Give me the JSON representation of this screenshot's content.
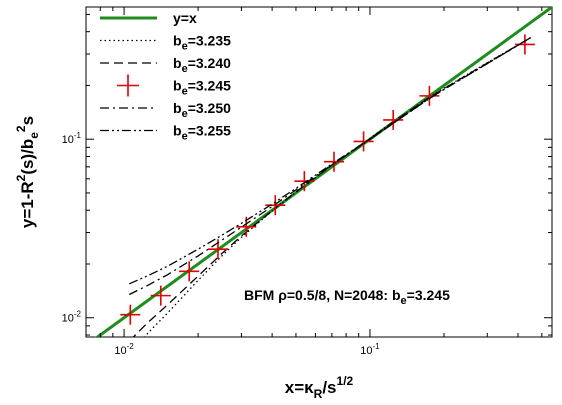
{
  "chart_data": {
    "type": "line",
    "x_scale": "log",
    "y_scale": "log",
    "xlim": [
      0.007,
      0.55
    ],
    "ylim": [
      0.0078,
      0.55
    ],
    "xlabel": {
      "base": "x=κ",
      "sub": "R",
      "mid": "/s",
      "sup": "1/2"
    },
    "ylabel": {
      "a": "y=1-R",
      "sup1": "2",
      "b": "(s)/b",
      "sub1": "e",
      "sup2": "2",
      "c": "s"
    },
    "x_ticks": [
      {
        "value": 0.01,
        "base": "10",
        "exp": "-2"
      },
      {
        "value": 0.1,
        "base": "10",
        "exp": "-1"
      }
    ],
    "y_ticks": [
      {
        "value": 0.01,
        "base": "10",
        "exp": "-2"
      },
      {
        "value": 0.1,
        "base": "10",
        "exp": "-1"
      }
    ],
    "legend_position": "top-left",
    "annotation": {
      "text": "BFM ρ=0.5/8, N=2048: b",
      "sub": "e",
      "tail": "=3.245"
    },
    "series": [
      {
        "key": "yx",
        "name": "y=x",
        "legend_main": "y=x",
        "legend_sub": "",
        "legend_tail": "",
        "style": "solid",
        "color": "#1e8c1e",
        "x": [
          0.007,
          0.55
        ],
        "y": [
          0.007,
          0.55
        ]
      },
      {
        "key": "b3235",
        "name": "be=3.235",
        "legend_main": "b",
        "legend_sub": "e",
        "legend_tail": "=3.235",
        "style": "dotted",
        "color": "#000000",
        "x": [
          0.0105,
          0.0125,
          0.015,
          0.02,
          0.025,
          0.03,
          0.04,
          0.05,
          0.07,
          0.1,
          0.13,
          0.17,
          0.2,
          0.3,
          0.45
        ],
        "y": [
          0.0062,
          0.0082,
          0.0106,
          0.0162,
          0.0222,
          0.0282,
          0.0395,
          0.0505,
          0.0715,
          0.101,
          0.131,
          0.168,
          0.193,
          0.268,
          0.37
        ]
      },
      {
        "key": "b3240",
        "name": "be=3.240",
        "legend_main": "b",
        "legend_sub": "e",
        "legend_tail": "=3.240",
        "style": "dashed",
        "color": "#000000",
        "x": [
          0.0105,
          0.0125,
          0.015,
          0.02,
          0.025,
          0.03,
          0.04,
          0.05,
          0.07,
          0.1,
          0.13,
          0.17,
          0.2,
          0.3,
          0.45
        ],
        "y": [
          0.0074,
          0.0094,
          0.0118,
          0.0171,
          0.0229,
          0.0287,
          0.0398,
          0.0507,
          0.0716,
          0.1005,
          0.13,
          0.167,
          0.192,
          0.267,
          0.37
        ]
      },
      {
        "key": "b3245",
        "name": "be=3.245",
        "legend_main": "b",
        "legend_sub": "e",
        "legend_tail": "=3.245",
        "style": "plus",
        "color": "#e00000",
        "x": [
          0.0106,
          0.0141,
          0.0184,
          0.0241,
          0.0314,
          0.0412,
          0.0541,
          0.0714,
          0.0942,
          0.1243,
          0.1745,
          0.4267
        ],
        "y": [
          0.0104,
          0.0133,
          0.0182,
          0.0242,
          0.0323,
          0.0427,
          0.0582,
          0.0748,
          0.0972,
          0.1282,
          0.1748,
          0.3392
        ]
      },
      {
        "key": "b3250",
        "name": "be=3.250",
        "legend_main": "b",
        "legend_sub": "e",
        "legend_tail": "=3.250",
        "style": "dashdot",
        "color": "#000000",
        "x": [
          0.0105,
          0.0125,
          0.015,
          0.02,
          0.025,
          0.03,
          0.04,
          0.05,
          0.07,
          0.1,
          0.13,
          0.17,
          0.2,
          0.3,
          0.45
        ],
        "y": [
          0.0135,
          0.0152,
          0.0174,
          0.0222,
          0.0272,
          0.0322,
          0.042,
          0.052,
          0.072,
          0.1,
          0.128,
          0.165,
          0.19,
          0.265,
          0.37
        ]
      },
      {
        "key": "b3255",
        "name": "be=3.255",
        "legend_main": "b",
        "legend_sub": "e",
        "legend_tail": "=3.255",
        "style": "dashdotdot",
        "color": "#000000",
        "x": [
          0.0105,
          0.0125,
          0.015,
          0.02,
          0.025,
          0.03,
          0.04,
          0.05,
          0.07,
          0.1,
          0.13,
          0.17,
          0.2,
          0.3,
          0.45
        ],
        "y": [
          0.0155,
          0.0172,
          0.0194,
          0.0242,
          0.029,
          0.0338,
          0.0433,
          0.053,
          0.0727,
          0.1003,
          0.128,
          0.165,
          0.19,
          0.265,
          0.37
        ]
      }
    ]
  }
}
